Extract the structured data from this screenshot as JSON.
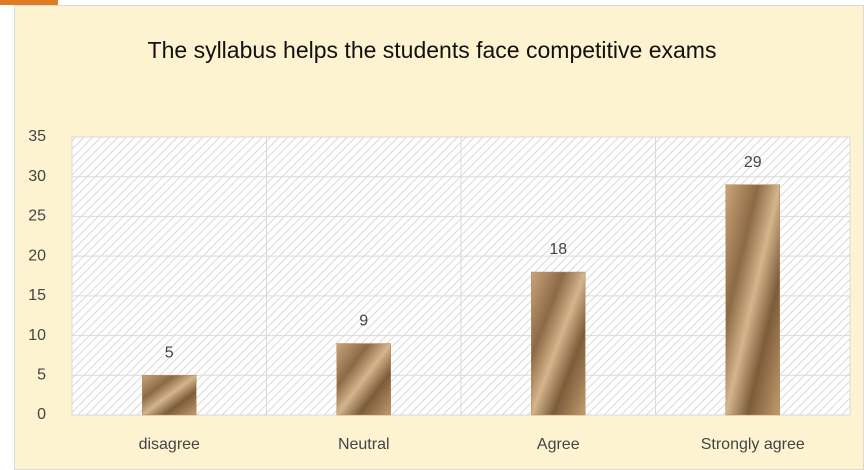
{
  "chart_data": {
    "type": "bar",
    "title": "The syllabus helps the students face competitive exams",
    "categories": [
      "disagree",
      "Neutral",
      "Agree",
      "Strongly agree"
    ],
    "values": [
      5,
      9,
      18,
      29
    ],
    "color": "#b38b5c",
    "ylim": [
      0,
      35
    ],
    "yticks": [
      0,
      5,
      10,
      15,
      20,
      25,
      30,
      35
    ],
    "grid": true
  }
}
